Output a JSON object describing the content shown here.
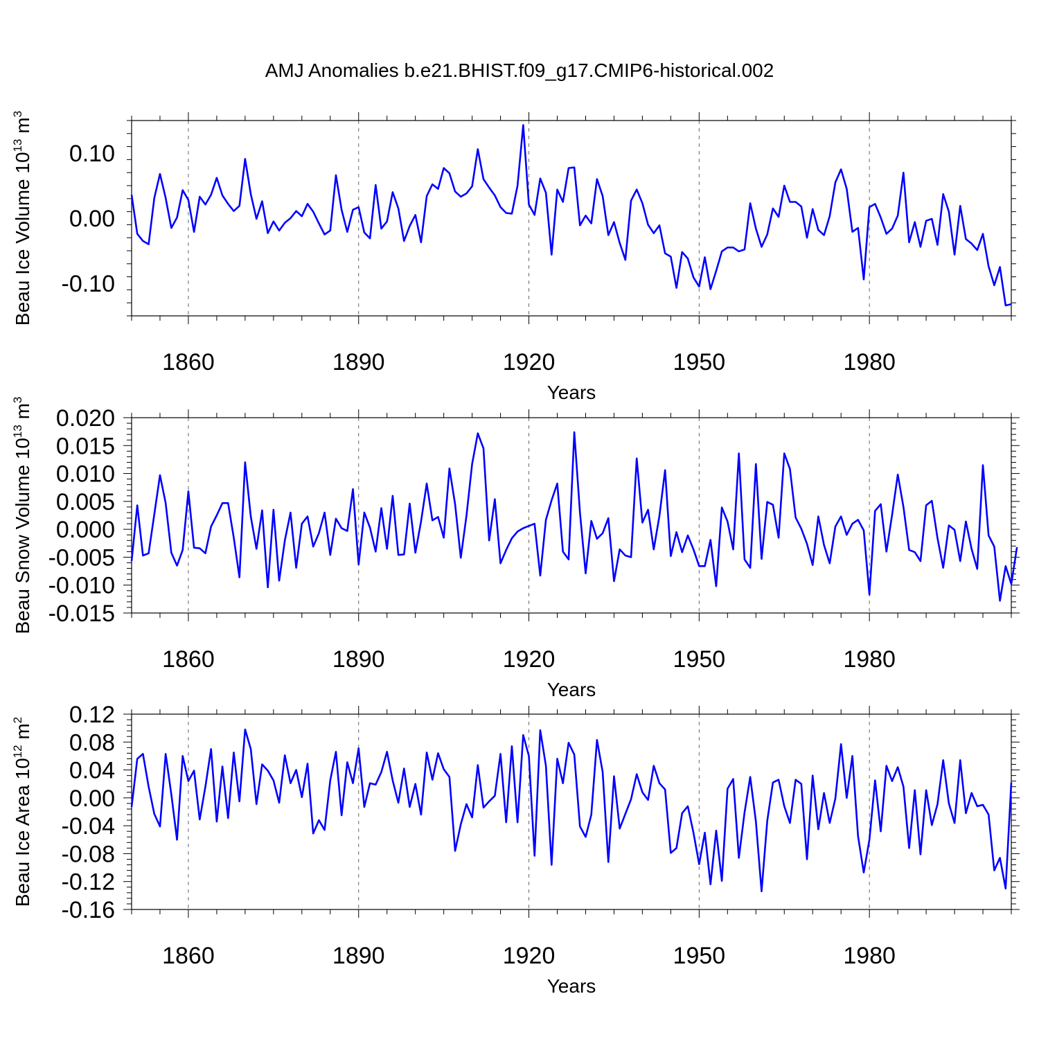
{
  "title": "AMJ Anomalies b.e21.BHIST.f09_g17.CMIP6-historical.002",
  "colors": {
    "line": "#0000ff",
    "axis": "#000000"
  },
  "chart_data": [
    {
      "type": "line",
      "ylabel_main": "Beau Ice Volume 10",
      "ylabel_exp": "13",
      "ylabel_unit": " m",
      "ylabel_unit_exp": "3",
      "xlabel": "Years",
      "xlim": [
        1850,
        2005
      ],
      "ylim": [
        -0.15,
        0.15
      ],
      "yticks": [
        -0.1,
        0.0,
        0.1
      ],
      "ytick_labels": [
        "-0.10",
        "0.00",
        "0.10"
      ],
      "xticks": [
        1860,
        1890,
        1920,
        1950,
        1980
      ],
      "xtick_labels": [
        "1860",
        "1890",
        "1920",
        "1950",
        "1980"
      ],
      "x_start": 1850,
      "values": [
        0.036,
        -0.024,
        -0.035,
        -0.04,
        0.031,
        0.068,
        0.031,
        -0.015,
        0.001,
        0.043,
        0.028,
        -0.021,
        0.033,
        0.021,
        0.036,
        0.062,
        0.035,
        0.022,
        0.011,
        0.019,
        0.091,
        0.037,
        -0.001,
        0.026,
        -0.023,
        -0.005,
        -0.019,
        -0.007,
        0.0,
        0.011,
        0.003,
        0.022,
        0.01,
        -0.008,
        -0.025,
        -0.019,
        0.066,
        0.013,
        -0.021,
        0.013,
        0.017,
        -0.022,
        -0.031,
        0.051,
        -0.016,
        -0.005,
        0.04,
        0.015,
        -0.035,
        -0.012,
        0.005,
        -0.037,
        0.034,
        0.052,
        0.045,
        0.077,
        0.069,
        0.041,
        0.033,
        0.038,
        0.049,
        0.106,
        0.06,
        0.047,
        0.035,
        0.017,
        0.008,
        0.007,
        0.05,
        0.143,
        0.021,
        0.005,
        0.061,
        0.039,
        -0.056,
        0.044,
        0.025,
        0.077,
        0.078,
        -0.011,
        0.004,
        -0.008,
        0.06,
        0.034,
        -0.026,
        -0.006,
        -0.038,
        -0.064,
        0.027,
        0.044,
        0.023,
        -0.01,
        -0.023,
        -0.011,
        -0.054,
        -0.059,
        -0.107,
        -0.052,
        -0.062,
        -0.091,
        -0.105,
        -0.06,
        -0.109,
        -0.081,
        -0.051,
        -0.045,
        -0.045,
        -0.051,
        -0.048,
        0.023,
        -0.016,
        -0.044,
        -0.025,
        0.015,
        0.002,
        0.05,
        0.025,
        0.025,
        0.018,
        -0.03,
        0.014,
        -0.018,
        -0.026,
        0.003,
        0.055,
        0.075,
        0.045,
        -0.021,
        -0.015,
        -0.094,
        0.017,
        0.022,
        0.001,
        -0.024,
        -0.016,
        0.004,
        0.07,
        -0.037,
        -0.006,
        -0.044,
        -0.004,
        -0.001,
        -0.041,
        0.037,
        0.01,
        -0.056,
        0.019,
        -0.032,
        -0.039,
        -0.049,
        -0.024,
        -0.074,
        -0.103,
        -0.075,
        -0.134,
        -0.132
      ]
    },
    {
      "type": "line",
      "ylabel_main": "Beau Snow Volume 10",
      "ylabel_exp": "13",
      "ylabel_unit": " m",
      "ylabel_unit_exp": "3",
      "xlabel": "Years",
      "xlim": [
        1850,
        2005
      ],
      "ylim": [
        -0.015,
        0.02
      ],
      "yticks": [
        -0.015,
        -0.01,
        -0.005,
        0.0,
        0.005,
        0.01,
        0.015,
        0.02
      ],
      "ytick_labels": [
        "-0.015",
        "-0.010",
        "-0.005",
        "0.000",
        "0.005",
        "0.010",
        "0.015",
        "0.020"
      ],
      "xticks": [
        1860,
        1890,
        1920,
        1950,
        1980
      ],
      "xtick_labels": [
        "1860",
        "1890",
        "1920",
        "1950",
        "1980"
      ],
      "x_start": 1850,
      "values": [
        -0.0057,
        0.0043,
        -0.0047,
        -0.0043,
        0.0027,
        0.0097,
        0.0047,
        -0.0042,
        -0.0065,
        -0.0037,
        0.0068,
        -0.0033,
        -0.0034,
        -0.0043,
        0.0005,
        0.0025,
        0.0047,
        0.0047,
        -0.0015,
        -0.0086,
        0.012,
        0.0023,
        -0.0035,
        0.0034,
        -0.0104,
        0.0035,
        -0.0092,
        -0.002,
        0.003,
        -0.0069,
        0.001,
        0.0023,
        -0.0031,
        -0.0007,
        0.003,
        -0.0046,
        0.0019,
        0.0002,
        -0.0003,
        0.0072,
        -0.0063,
        0.003,
        0.0003,
        -0.004,
        0.0038,
        -0.0035,
        0.006,
        -0.0046,
        -0.0045,
        0.0046,
        -0.0042,
        0.0014,
        0.0082,
        0.0016,
        0.0022,
        -0.0015,
        0.0109,
        0.0045,
        -0.0051,
        0.0024,
        0.0117,
        0.0172,
        0.0145,
        -0.002,
        0.0054,
        -0.0061,
        -0.0037,
        -0.0016,
        -0.0004,
        0.0002,
        0.0006,
        0.001,
        -0.0083,
        0.0017,
        0.0052,
        0.0082,
        -0.004,
        -0.0054,
        0.0174,
        0.003,
        -0.0079,
        0.0015,
        -0.0017,
        -0.0007,
        0.002,
        -0.0093,
        -0.0036,
        -0.0047,
        -0.005,
        0.0127,
        0.0012,
        0.0035,
        -0.0036,
        0.0024,
        0.0106,
        -0.0048,
        -0.0005,
        -0.0041,
        -0.0011,
        -0.0036,
        -0.0066,
        -0.0066,
        -0.0019,
        -0.0102,
        0.0039,
        0.0014,
        -0.0036,
        0.0136,
        -0.0054,
        -0.0069,
        0.0117,
        -0.0053,
        0.0049,
        0.0044,
        -0.0015,
        0.0136,
        0.0108,
        0.0021,
        0.0001,
        -0.0026,
        -0.0064,
        0.0023,
        -0.0028,
        -0.0061,
        0.0005,
        0.0023,
        -0.001,
        0.001,
        0.0017,
        -0.0002,
        -0.0117,
        0.0033,
        0.0045,
        -0.004,
        0.0026,
        0.0098,
        0.004,
        -0.0037,
        -0.0041,
        -0.0057,
        0.0043,
        0.0051,
        -0.0016,
        -0.0069,
        0.0007,
        -0.0001,
        -0.0057,
        0.0014,
        -0.0035,
        -0.0071,
        0.0115,
        -0.0011,
        -0.0031,
        -0.0128,
        -0.0066,
        -0.0098,
        -0.0032
      ]
    },
    {
      "type": "line",
      "ylabel_main": "Beau Ice Area 10",
      "ylabel_exp": "12",
      "ylabel_unit": " m",
      "ylabel_unit_exp": "2",
      "xlabel": "Years",
      "xlim": [
        1850,
        2005
      ],
      "ylim": [
        -0.16,
        0.12
      ],
      "yticks": [
        -0.16,
        -0.12,
        -0.08,
        -0.04,
        0.0,
        0.04,
        0.08,
        0.12
      ],
      "ytick_labels": [
        "-0.16",
        "-0.12",
        "-0.08",
        "-0.04",
        "0.00",
        "0.04",
        "0.08",
        "0.12"
      ],
      "xticks": [
        1860,
        1890,
        1920,
        1950,
        1980
      ],
      "xtick_labels": [
        "1860",
        "1890",
        "1920",
        "1950",
        "1980"
      ],
      "x_start": 1850,
      "values": [
        -0.013,
        0.056,
        0.063,
        0.016,
        -0.023,
        -0.041,
        0.063,
        0.005,
        -0.06,
        0.06,
        0.024,
        0.039,
        -0.031,
        0.016,
        0.07,
        -0.034,
        0.045,
        -0.029,
        0.065,
        -0.005,
        0.098,
        0.07,
        -0.009,
        0.048,
        0.039,
        0.025,
        -0.007,
        0.061,
        0.021,
        0.04,
        0.001,
        0.049,
        -0.051,
        -0.032,
        -0.046,
        0.025,
        0.066,
        -0.025,
        0.051,
        0.021,
        0.071,
        -0.013,
        0.021,
        0.019,
        0.037,
        0.066,
        0.025,
        -0.007,
        0.042,
        -0.013,
        0.02,
        -0.024,
        0.065,
        0.026,
        0.064,
        0.041,
        0.03,
        -0.076,
        -0.038,
        -0.009,
        -0.028,
        0.047,
        -0.014,
        -0.005,
        0.003,
        0.063,
        -0.035,
        0.074,
        -0.035,
        0.09,
        0.06,
        -0.083,
        0.097,
        0.046,
        -0.096,
        0.056,
        0.021,
        0.079,
        0.062,
        -0.041,
        -0.056,
        -0.024,
        0.083,
        0.037,
        -0.092,
        0.031,
        -0.044,
        -0.023,
        -0.002,
        0.034,
        0.008,
        -0.003,
        0.046,
        0.021,
        0.012,
        -0.079,
        -0.072,
        -0.022,
        -0.012,
        -0.05,
        -0.095,
        -0.05,
        -0.124,
        -0.047,
        -0.119,
        0.013,
        0.027,
        -0.086,
        -0.021,
        0.03,
        -0.034,
        -0.134,
        -0.033,
        0.022,
        0.026,
        -0.012,
        -0.036,
        0.026,
        0.02,
        -0.088,
        0.032,
        -0.045,
        0.007,
        -0.036,
        -0.001,
        0.077,
        0.0,
        0.06,
        -0.055,
        -0.107,
        -0.06,
        0.025,
        -0.048,
        0.046,
        0.024,
        0.044,
        0.016,
        -0.072,
        0.011,
        -0.081,
        0.011,
        -0.039,
        -0.009,
        0.054,
        -0.008,
        -0.036,
        0.054,
        -0.022,
        0.007,
        -0.012,
        -0.01,
        -0.024,
        -0.104,
        -0.086,
        -0.13,
        0.022
      ]
    }
  ]
}
